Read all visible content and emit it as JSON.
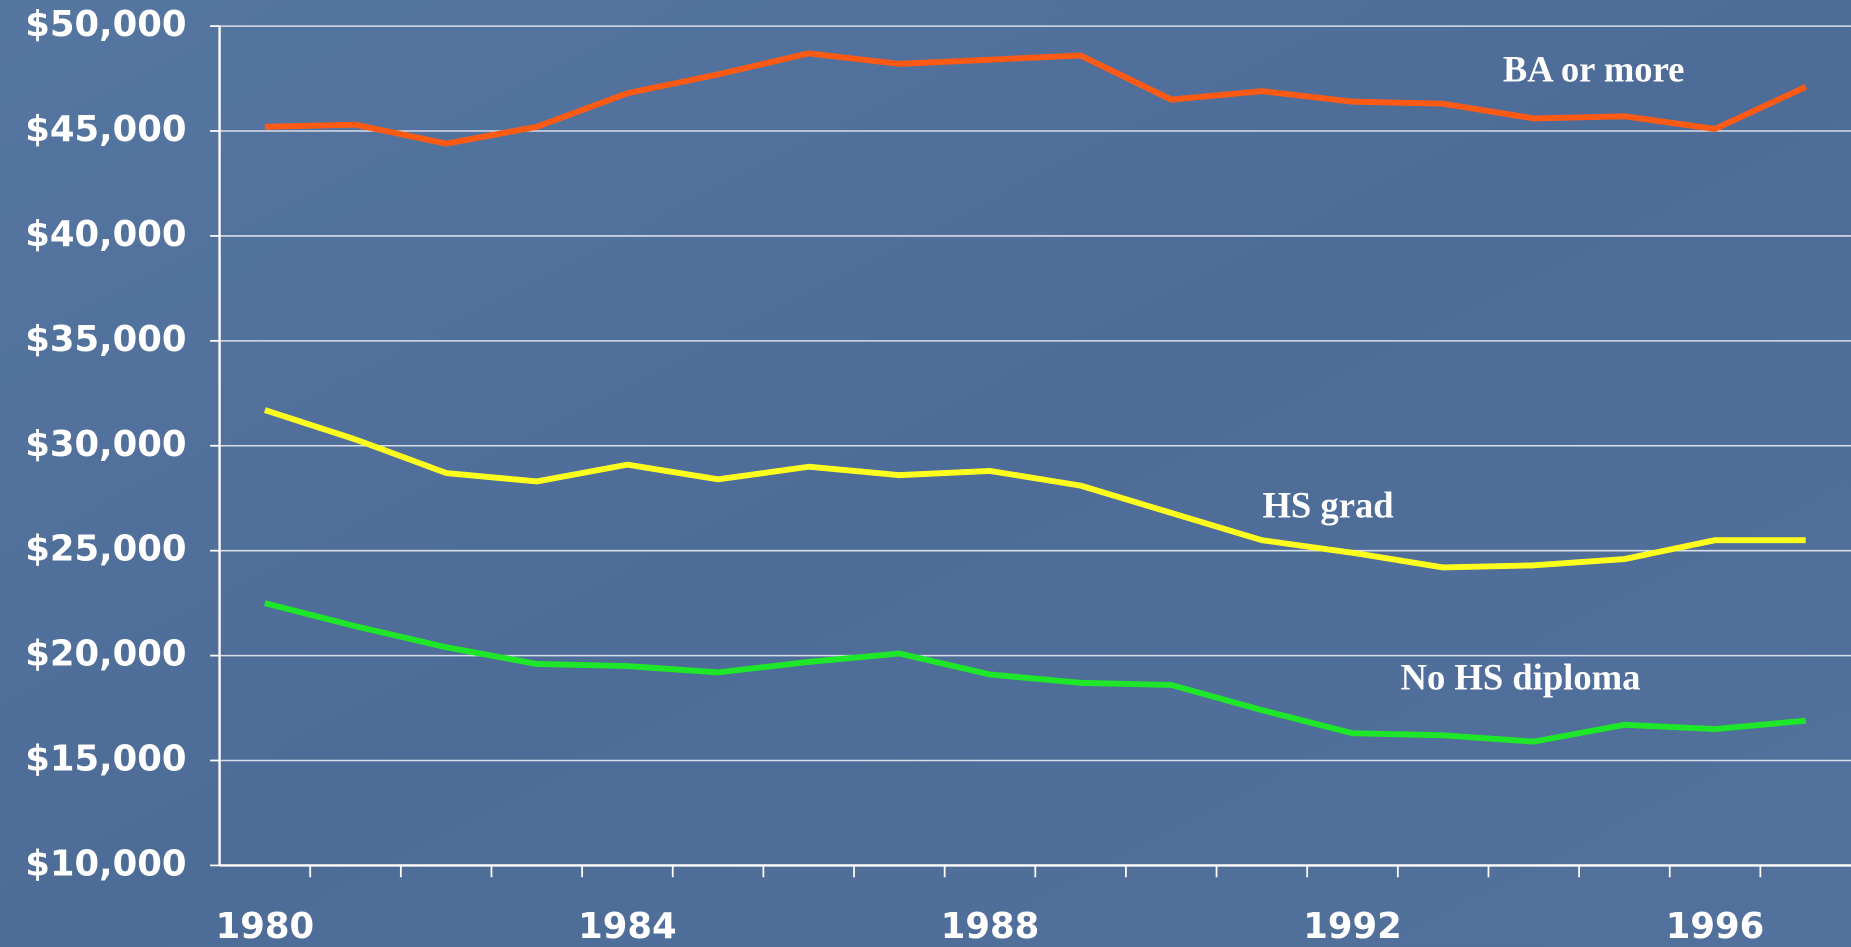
{
  "chart_data": {
    "type": "line",
    "categories": [
      "1980",
      null,
      null,
      null,
      "1984",
      null,
      null,
      null,
      "1988",
      null,
      null,
      null,
      "1992",
      null,
      null,
      null,
      "1996",
      null
    ],
    "series": [
      {
        "name": "BA or more",
        "color": "#ff5a14",
        "values": [
          45200,
          45300,
          44400,
          45200,
          46800,
          47700,
          48700,
          48200,
          48400,
          48600,
          46500,
          46900,
          46400,
          46300,
          45600,
          45700,
          45100,
          47100
        ]
      },
      {
        "name": "HS grad",
        "color": "#ffff1e",
        "values": [
          31700,
          30300,
          28700,
          28300,
          29100,
          28400,
          29000,
          28600,
          28800,
          28100,
          26800,
          25500,
          24900,
          24200,
          24300,
          24600,
          25500,
          25500
        ]
      },
      {
        "name": "No HS diploma",
        "color": "#1ee628",
        "values": [
          22500,
          21400,
          20400,
          19600,
          19500,
          19200,
          19700,
          20100,
          19100,
          18700,
          18600,
          17400,
          16300,
          16200,
          15900,
          16700,
          16500,
          16900
        ]
      }
    ],
    "ylim": [
      10000,
      50000
    ],
    "yticks": [
      {
        "value": 10000,
        "label": "$10,000"
      },
      {
        "value": 15000,
        "label": "$15,000"
      },
      {
        "value": 20000,
        "label": "$20,000"
      },
      {
        "value": 25000,
        "label": "$25,000"
      },
      {
        "value": 30000,
        "label": "$30,000"
      },
      {
        "value": 35000,
        "label": "$35,000"
      },
      {
        "value": 40000,
        "label": "$40,000"
      },
      {
        "value": 45000,
        "label": "$45,000"
      },
      {
        "value": 50000,
        "label": "$50,000"
      }
    ],
    "grid": true
  }
}
